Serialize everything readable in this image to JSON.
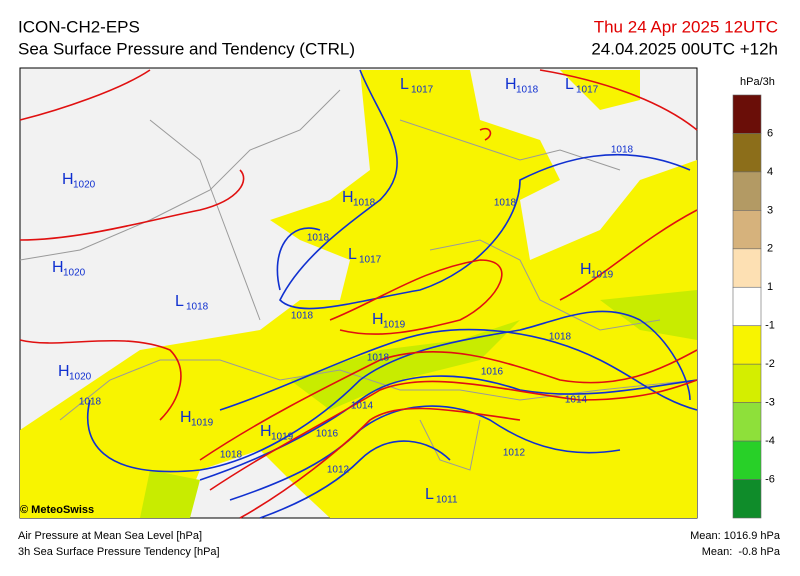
{
  "header": {
    "model": "ICON-CH2-EPS",
    "subtitle": "Sea Surface Pressure and Tendency (CTRL)",
    "valid_time": "Thu 24 Apr 2025 12UTC",
    "run": "24.04.2025 00UTC +12h"
  },
  "map": {
    "pressure_centers": [
      {
        "letter": "L",
        "value": 1017
      },
      {
        "letter": "H",
        "value": 1018
      },
      {
        "letter": "L",
        "value": 1017
      },
      {
        "letter": "H",
        "value": 1020
      },
      {
        "letter": "H",
        "value": 1018
      },
      {
        "letter": "L",
        "value": 1017
      },
      {
        "letter": "H",
        "value": 1020
      },
      {
        "letter": "L",
        "value": 1018
      },
      {
        "letter": "H",
        "value": 1019
      },
      {
        "letter": "H",
        "value": 1019
      },
      {
        "letter": "H",
        "value": 1020
      },
      {
        "letter": "H",
        "value": 1019
      },
      {
        "letter": "H",
        "value": 1019
      },
      {
        "letter": "L",
        "value": 1011
      }
    ],
    "isobar_labels": [
      1018,
      1018,
      1018,
      1018,
      1018,
      1018,
      1016,
      1014,
      1014,
      1016,
      1018,
      1018,
      1012,
      1012
    ]
  },
  "legend": {
    "unit": "hPa/3h",
    "ticks": [
      6,
      4,
      3,
      2,
      1,
      -1,
      -2,
      -3,
      -4,
      -6
    ],
    "colors": [
      "#6a0e08",
      "#8c6e1a",
      "#b39a64",
      "#d6b27c",
      "#fde0b3",
      "#ffffff",
      "#f8f400",
      "#d4ee00",
      "#8ee03a",
      "#28d028",
      "#0f8c2a"
    ]
  },
  "footer": {
    "credit": "© MeteoSwiss",
    "line1": "Air Pressure at Mean Sea Level [hPa]",
    "line2": "3h Sea Surface Pressure Tendency [hPa]",
    "mean1": "Mean: 1016.9 hPa",
    "mean2": "Mean:  -0.8 hPa"
  }
}
